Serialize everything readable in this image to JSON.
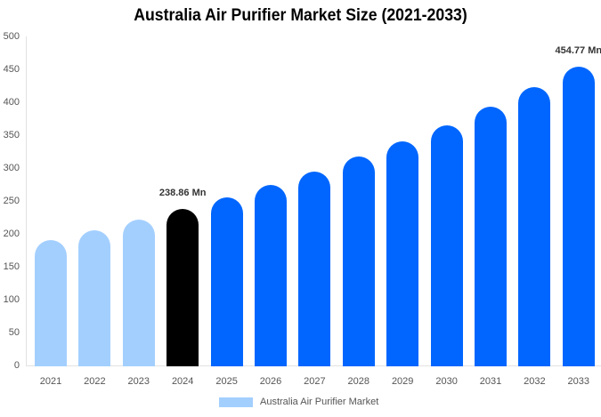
{
  "chart_data": {
    "type": "bar",
    "title": "Australia Air Purifier Market Size (2021-2033)",
    "xlabel": "",
    "ylabel": "",
    "ylim": [
      0,
      500
    ],
    "yticks": [
      0,
      50,
      100,
      150,
      200,
      250,
      300,
      350,
      400,
      450,
      500
    ],
    "grid": false,
    "legend_position": "bottom",
    "categories": [
      "2021",
      "2022",
      "2023",
      "2024",
      "2025",
      "2026",
      "2027",
      "2028",
      "2029",
      "2030",
      "2031",
      "2032",
      "2033"
    ],
    "series": [
      {
        "name": "Australia Air Purifier Market",
        "values": [
          192,
          207,
          223,
          238.86,
          257,
          276,
          296,
          319,
          342,
          366,
          395,
          424,
          454.77
        ]
      }
    ],
    "bar_colors": [
      "#a3cfff",
      "#a3cfff",
      "#a3cfff",
      "#000000",
      "#0066ff",
      "#0066ff",
      "#0066ff",
      "#0066ff",
      "#0066ff",
      "#0066ff",
      "#0066ff",
      "#0066ff",
      "#0066ff"
    ],
    "annotations": [
      {
        "category": "2024",
        "text": "238.86 Mn"
      },
      {
        "category": "2033",
        "text": "454.77 Mn"
      }
    ]
  },
  "legend": {
    "label": "Australia Air Purifier Market",
    "color": "#a3cfff"
  }
}
